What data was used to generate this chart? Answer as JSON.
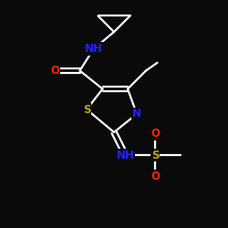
{
  "bg_color": "#0a0a0a",
  "atom_colors": {
    "C": "#ffffff",
    "N": "#2222ff",
    "O": "#ff2200",
    "S": "#bbaa00",
    "H": "#ffffff"
  },
  "bond_color": "#ffffff",
  "bond_width": 1.6,
  "fig_size": [
    2.5,
    2.5
  ],
  "dpi": 100
}
